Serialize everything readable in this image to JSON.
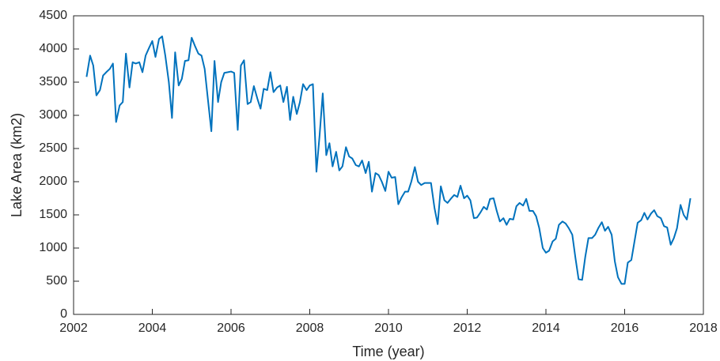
{
  "chart_data": {
    "type": "line",
    "xlabel": "Time (year)",
    "ylabel": "Lake Area (km2)",
    "x": [
      2002.33,
      2002.42,
      2002.5,
      2002.58,
      2002.67,
      2002.75,
      2002.83,
      2002.92,
      2003,
      2003.08,
      2003.17,
      2003.25,
      2003.33,
      2003.42,
      2003.5,
      2003.58,
      2003.67,
      2003.75,
      2003.83,
      2003.92,
      2004,
      2004.08,
      2004.17,
      2004.25,
      2004.33,
      2004.42,
      2004.5,
      2004.58,
      2004.67,
      2004.75,
      2004.83,
      2004.92,
      2005,
      2005.08,
      2005.17,
      2005.25,
      2005.33,
      2005.42,
      2005.5,
      2005.58,
      2005.67,
      2005.75,
      2005.83,
      2005.92,
      2006,
      2006.08,
      2006.17,
      2006.25,
      2006.33,
      2006.42,
      2006.5,
      2006.58,
      2006.67,
      2006.75,
      2006.83,
      2006.92,
      2007,
      2007.08,
      2007.17,
      2007.25,
      2007.33,
      2007.42,
      2007.5,
      2007.58,
      2007.67,
      2007.75,
      2007.83,
      2007.92,
      2008,
      2008.08,
      2008.17,
      2008.25,
      2008.33,
      2008.42,
      2008.5,
      2008.58,
      2008.67,
      2008.75,
      2008.83,
      2008.92,
      2009,
      2009.08,
      2009.17,
      2009.25,
      2009.33,
      2009.42,
      2009.5,
      2009.58,
      2009.67,
      2009.75,
      2009.83,
      2009.92,
      2010,
      2010.08,
      2010.17,
      2010.25,
      2010.33,
      2010.42,
      2010.5,
      2010.58,
      2010.67,
      2010.75,
      2010.83,
      2010.92,
      2011,
      2011.08,
      2011.17,
      2011.25,
      2011.33,
      2011.42,
      2011.5,
      2011.58,
      2011.67,
      2011.75,
      2011.83,
      2011.92,
      2012,
      2012.08,
      2012.17,
      2012.25,
      2012.33,
      2012.42,
      2012.5,
      2012.58,
      2012.67,
      2012.75,
      2012.83,
      2012.92,
      2013,
      2013.08,
      2013.17,
      2013.25,
      2013.33,
      2013.42,
      2013.5,
      2013.58,
      2013.67,
      2013.75,
      2013.83,
      2013.92,
      2014,
      2014.08,
      2014.17,
      2014.25,
      2014.33,
      2014.42,
      2014.5,
      2014.58,
      2014.67,
      2014.75,
      2014.83,
      2014.92,
      2015,
      2015.08,
      2015.17,
      2015.25,
      2015.33,
      2015.42,
      2015.5,
      2015.58,
      2015.67,
      2015.75,
      2015.83,
      2015.92,
      2016,
      2016.08,
      2016.17,
      2016.25,
      2016.33,
      2016.42,
      2016.5,
      2016.58,
      2016.67,
      2016.75,
      2016.83,
      2016.92,
      2017,
      2017.08,
      2017.17,
      2017.25,
      2017.33,
      2017.42,
      2017.5,
      2017.58,
      2017.67
    ],
    "values": [
      3580,
      3900,
      3750,
      3300,
      3380,
      3600,
      3650,
      3700,
      3780,
      2900,
      3150,
      3200,
      3930,
      3420,
      3800,
      3780,
      3800,
      3650,
      3900,
      4020,
      4120,
      3880,
      4150,
      4190,
      3900,
      3500,
      2960,
      3950,
      3450,
      3550,
      3820,
      3830,
      4170,
      4050,
      3930,
      3900,
      3700,
      3200,
      2760,
      3820,
      3200,
      3500,
      3640,
      3650,
      3660,
      3640,
      2780,
      3750,
      3830,
      3170,
      3200,
      3440,
      3250,
      3100,
      3400,
      3380,
      3650,
      3350,
      3420,
      3450,
      3200,
      3430,
      2930,
      3280,
      3020,
      3200,
      3470,
      3380,
      3450,
      3470,
      2150,
      2700,
      3330,
      2400,
      2580,
      2230,
      2450,
      2170,
      2230,
      2520,
      2380,
      2350,
      2250,
      2230,
      2320,
      2130,
      2300,
      1850,
      2130,
      2100,
      2000,
      1860,
      2150,
      2060,
      2070,
      1660,
      1760,
      1850,
      1850,
      2000,
      2220,
      2000,
      1950,
      1980,
      1980,
      1980,
      1600,
      1360,
      1930,
      1720,
      1680,
      1740,
      1800,
      1770,
      1940,
      1750,
      1790,
      1720,
      1450,
      1460,
      1530,
      1620,
      1580,
      1740,
      1750,
      1560,
      1400,
      1450,
      1350,
      1440,
      1430,
      1630,
      1680,
      1640,
      1740,
      1560,
      1560,
      1480,
      1300,
      1000,
      930,
      960,
      1100,
      1140,
      1350,
      1400,
      1370,
      1300,
      1200,
      850,
      530,
      520,
      870,
      1150,
      1150,
      1200,
      1300,
      1390,
      1260,
      1320,
      1200,
      800,
      560,
      460,
      460,
      780,
      820,
      1100,
      1380,
      1420,
      1530,
      1430,
      1520,
      1570,
      1480,
      1450,
      1330,
      1310,
      1050,
      1150,
      1300,
      1650,
      1500,
      1430,
      1750
    ],
    "color": "#0072bd",
    "xlim": [
      2002,
      2018
    ],
    "xticks": [
      2002,
      2004,
      2006,
      2008,
      2010,
      2012,
      2014,
      2016,
      2018
    ],
    "ylim": [
      0,
      4500
    ],
    "yticks": [
      0,
      500,
      1000,
      1500,
      2000,
      2500,
      3000,
      3500,
      4000,
      4500
    ],
    "grid": false
  }
}
